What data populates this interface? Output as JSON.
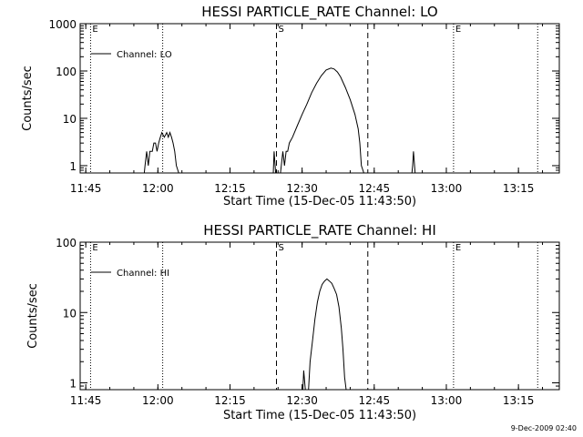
{
  "footer": {
    "timestamp": "9-Dec-2009 02:40"
  },
  "colors": {
    "background": "#ffffff",
    "ink": "#000000"
  },
  "chart_data": [
    {
      "type": "line",
      "title": "HESSI PARTICLE_RATE Channel: LO",
      "xlabel": "Start Time (15-Dec-05 11:43:50)",
      "ylabel": "Counts/sec",
      "yscale": "log",
      "ylim": [
        0.7,
        1000
      ],
      "xlim": [
        "11:43:50",
        "13:23:30"
      ],
      "x_ticks": [
        "11:45",
        "12:00",
        "12:15",
        "12:30",
        "12:45",
        "13:00",
        "13:15"
      ],
      "y_ticks": [
        "1",
        "10",
        "100",
        "1000"
      ],
      "legend": {
        "position": "upper-left",
        "entries": [
          "Channel: LO"
        ]
      },
      "markers": [
        {
          "label": "E",
          "time": "11:46:00",
          "style": "dotted"
        },
        {
          "label": "",
          "time": "12:01:00",
          "style": "dotted"
        },
        {
          "label": "S",
          "time": "12:24:40",
          "style": "dashed"
        },
        {
          "label": "",
          "time": "12:43:40",
          "style": "dashed"
        },
        {
          "label": "E",
          "time": "13:01:30",
          "style": "dotted"
        },
        {
          "label": "",
          "time": "13:19:00",
          "style": "dotted"
        }
      ],
      "series": [
        {
          "name": "Channel: LO",
          "segments": [
            [
              [
                "11:57:10",
                0.7
              ],
              [
                "11:57:20",
                1
              ],
              [
                "11:57:40",
                2
              ],
              [
                "11:58:00",
                1
              ],
              [
                "11:58:20",
                2
              ],
              [
                "11:58:50",
                2
              ],
              [
                "11:59:10",
                3
              ],
              [
                "11:59:30",
                3
              ],
              [
                "11:59:50",
                2
              ],
              [
                "12:00:10",
                3
              ],
              [
                "12:00:30",
                4
              ],
              [
                "12:00:50",
                5
              ],
              [
                "12:01:20",
                4
              ],
              [
                "12:01:50",
                5
              ],
              [
                "12:02:10",
                4
              ],
              [
                "12:02:30",
                5
              ],
              [
                "12:02:50",
                4
              ],
              [
                "12:03:10",
                3
              ],
              [
                "12:03:30",
                2
              ],
              [
                "12:03:50",
                1
              ],
              [
                "12:04:20",
                0.7
              ]
            ],
            [
              [
                "12:24:00",
                0.7
              ],
              [
                "12:24:10",
                2
              ],
              [
                "12:24:30",
                0.7
              ]
            ],
            [
              [
                "12:25:30",
                0.7
              ],
              [
                "12:25:40",
                1
              ],
              [
                "12:26:00",
                2
              ],
              [
                "12:26:20",
                1
              ],
              [
                "12:26:40",
                2
              ],
              [
                "12:27:00",
                2
              ],
              [
                "12:27:20",
                3
              ],
              [
                "12:28:00",
                4
              ],
              [
                "12:29:00",
                7
              ],
              [
                "12:30:00",
                12
              ],
              [
                "12:31:00",
                20
              ],
              [
                "12:32:00",
                35
              ],
              [
                "12:33:00",
                55
              ],
              [
                "12:34:00",
                80
              ],
              [
                "12:35:00",
                105
              ],
              [
                "12:36:00",
                115
              ],
              [
                "12:36:40",
                110
              ],
              [
                "12:37:20",
                95
              ],
              [
                "12:38:00",
                75
              ],
              [
                "12:39:00",
                45
              ],
              [
                "12:40:00",
                25
              ],
              [
                "12:41:00",
                12
              ],
              [
                "12:41:40",
                6
              ],
              [
                "12:42:00",
                3
              ],
              [
                "12:42:20",
                1
              ],
              [
                "12:42:50",
                0.7
              ]
            ],
            [
              [
                "12:52:50",
                0.7
              ],
              [
                "12:53:00",
                1
              ],
              [
                "12:53:10",
                2
              ],
              [
                "12:53:30",
                0.7
              ]
            ]
          ]
        }
      ]
    },
    {
      "type": "line",
      "title": "HESSI PARTICLE_RATE Channel: HI",
      "xlabel": "Start Time (15-Dec-05 11:43:50)",
      "ylabel": "Counts/sec",
      "yscale": "log",
      "ylim": [
        0.8,
        100
      ],
      "xlim": [
        "11:43:50",
        "13:23:30"
      ],
      "x_ticks": [
        "11:45",
        "12:00",
        "12:15",
        "12:30",
        "12:45",
        "13:00",
        "13:15"
      ],
      "y_ticks": [
        "1",
        "10",
        "100"
      ],
      "legend": {
        "position": "upper-left",
        "entries": [
          "Channel: HI"
        ]
      },
      "markers": [
        {
          "label": "E",
          "time": "11:46:00",
          "style": "dotted"
        },
        {
          "label": "",
          "time": "12:01:00",
          "style": "dotted"
        },
        {
          "label": "S",
          "time": "12:24:40",
          "style": "dashed"
        },
        {
          "label": "",
          "time": "12:43:40",
          "style": "dashed"
        },
        {
          "label": "E",
          "time": "13:01:30",
          "style": "dotted"
        },
        {
          "label": "",
          "time": "13:19:00",
          "style": "dotted"
        }
      ],
      "series": [
        {
          "name": "Channel: HI",
          "segments": [
            [
              [
                "12:30:10",
                0.8
              ],
              [
                "12:30:20",
                1.5
              ],
              [
                "12:30:40",
                0.8
              ]
            ],
            [
              [
                "12:31:20",
                0.8
              ],
              [
                "12:31:40",
                2
              ],
              [
                "12:32:10",
                4
              ],
              [
                "12:32:40",
                8
              ],
              [
                "12:33:10",
                14
              ],
              [
                "12:33:40",
                20
              ],
              [
                "12:34:10",
                25
              ],
              [
                "12:34:40",
                28
              ],
              [
                "12:35:10",
                30
              ],
              [
                "12:35:40",
                28
              ],
              [
                "12:36:10",
                26
              ],
              [
                "12:36:40",
                22
              ],
              [
                "12:37:10",
                18
              ],
              [
                "12:37:40",
                12
              ],
              [
                "12:38:10",
                6
              ],
              [
                "12:38:30",
                3
              ],
              [
                "12:38:50",
                1.2
              ],
              [
                "12:39:10",
                0.8
              ]
            ]
          ]
        }
      ]
    }
  ]
}
